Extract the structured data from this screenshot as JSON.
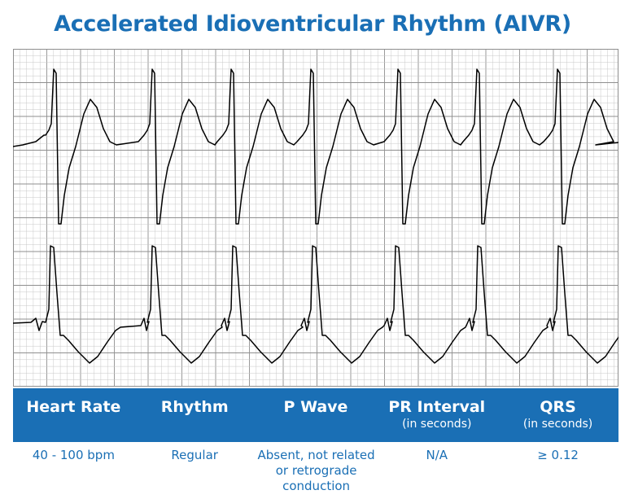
{
  "title": "Accelerated Idioventricular Rhythm (AIVR)",
  "colors": {
    "accent": "#1a6fb5",
    "grid_minor": "#c8c8c8",
    "grid_major": "#8f8f8f",
    "trace": "#000000"
  },
  "table": {
    "headers": [
      {
        "label": "Heart Rate",
        "sub": ""
      },
      {
        "label": "Rhythm",
        "sub": ""
      },
      {
        "label": "P Wave",
        "sub": ""
      },
      {
        "label": "PR Interval",
        "sub": "(in seconds)"
      },
      {
        "label": "QRS",
        "sub": "(in seconds)"
      }
    ],
    "values": [
      "40 - 100 bpm",
      "Regular",
      "Absent, not related or retrograde conduction",
      "N/A",
      "≥ 0.12"
    ]
  }
}
